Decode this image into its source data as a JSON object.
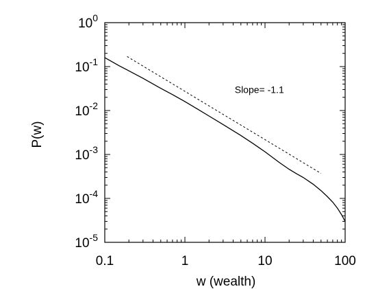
{
  "chart_data": {
    "type": "line",
    "title": "",
    "xlabel": "w (wealth)",
    "ylabel": "P(w)",
    "xscale": "log",
    "yscale": "log",
    "xlim": [
      0.1,
      100
    ],
    "ylim": [
      1e-05,
      1
    ],
    "grid": false,
    "x_ticks": [
      {
        "value": 0.1,
        "label": "0.1"
      },
      {
        "value": 1,
        "label": "1"
      },
      {
        "value": 10,
        "label": "10"
      },
      {
        "value": 100,
        "label": "100"
      }
    ],
    "y_ticks": [
      {
        "value": 1,
        "base": "10",
        "exp": "0"
      },
      {
        "value": 0.1,
        "base": "10",
        "exp": "-1"
      },
      {
        "value": 0.01,
        "base": "10",
        "exp": "-2"
      },
      {
        "value": 0.001,
        "base": "10",
        "exp": "-3"
      },
      {
        "value": 0.0001,
        "base": "10",
        "exp": "-4"
      },
      {
        "value": 1e-05,
        "base": "10",
        "exp": "-5"
      }
    ],
    "series": [
      {
        "style": "solid",
        "x": [
          0.1,
          0.15,
          0.2,
          0.3,
          0.5,
          0.7,
          1,
          1.5,
          2,
          3,
          5,
          7,
          10,
          15,
          20,
          25,
          30,
          40,
          50,
          60,
          70,
          80,
          90,
          100
        ],
        "y": [
          0.16,
          0.105,
          0.08,
          0.054,
          0.032,
          0.023,
          0.016,
          0.0103,
          0.0075,
          0.0048,
          0.0027,
          0.0018,
          0.00115,
          0.00066,
          0.00046,
          0.00036,
          0.0003,
          0.00021,
          0.00015,
          0.00011,
          8.2e-05,
          6e-05,
          4.3e-05,
          3e-05
        ]
      },
      {
        "style": "dashed",
        "x": [
          0.19,
          50
        ],
        "y": [
          0.17,
          0.00037
        ]
      }
    ],
    "annotations": [
      {
        "text": "Slope= -1.1",
        "x": 8.5,
        "y": 0.025
      }
    ]
  }
}
